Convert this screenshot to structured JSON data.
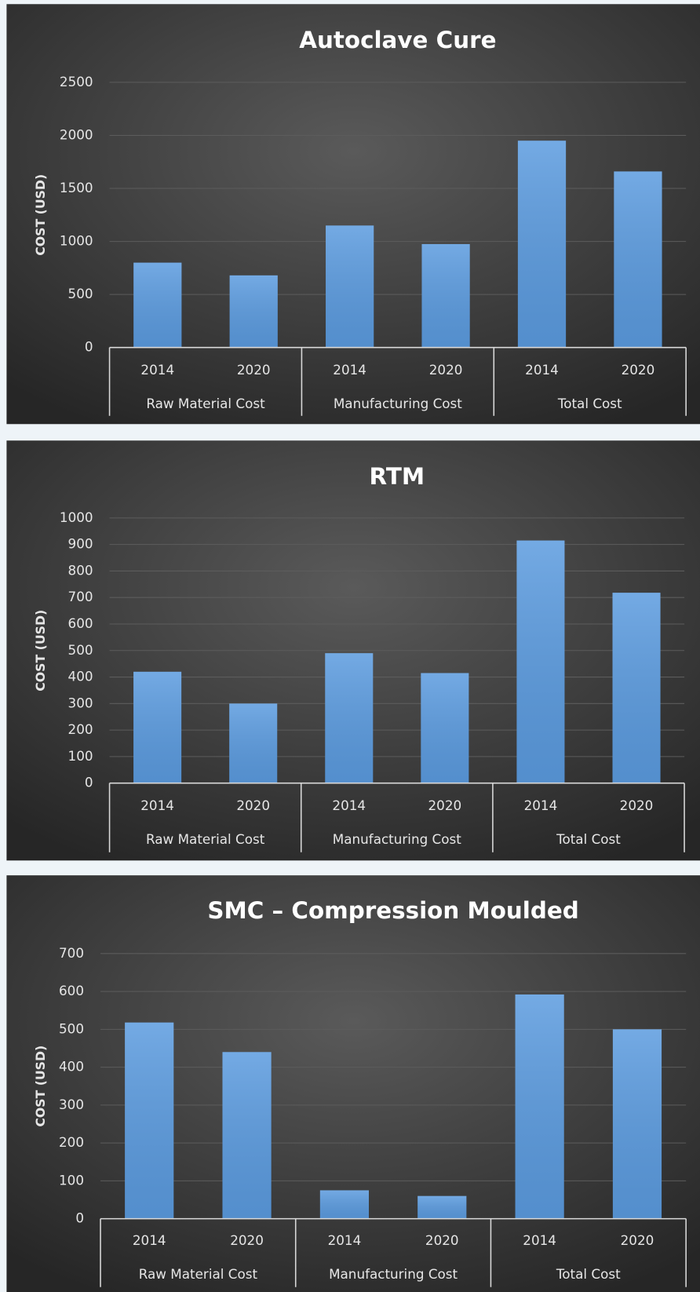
{
  "chart_data": [
    {
      "type": "bar",
      "title": "Autoclave Cure",
      "y_label": "COST (USD)",
      "categories": [
        "2014",
        "2020",
        "2014",
        "2020",
        "2014",
        "2020"
      ],
      "groups": [
        "Raw Material Cost",
        "Manufacturing Cost",
        "Total Cost"
      ],
      "values": [
        800,
        680,
        1150,
        975,
        1950,
        1660
      ],
      "color": "#5b9bdf",
      "ylim": [
        0,
        2500
      ],
      "yticks": [
        0,
        500,
        1000,
        1500,
        2000,
        2500
      ],
      "grid": true
    },
    {
      "type": "bar",
      "title": "RTM",
      "y_label": "COST (USD)",
      "categories": [
        "2014",
        "2020",
        "2014",
        "2020",
        "2014",
        "2020"
      ],
      "groups": [
        "Raw Material Cost",
        "Manufacturing Cost",
        "Total Cost"
      ],
      "values": [
        420,
        300,
        490,
        415,
        915,
        718
      ],
      "color": "#5b9bdf",
      "ylim": [
        0,
        1000
      ],
      "yticks": [
        0,
        100,
        200,
        300,
        400,
        500,
        600,
        700,
        800,
        900,
        1000
      ],
      "grid": true
    },
    {
      "type": "bar",
      "title": "SMC – Compression Moulded",
      "y_label": "COST (USD)",
      "categories": [
        "2014",
        "2020",
        "2014",
        "2020",
        "2014",
        "2020"
      ],
      "groups": [
        "Raw Material Cost",
        "Manufacturing Cost",
        "Total Cost"
      ],
      "values": [
        518,
        440,
        75,
        60,
        592,
        500
      ],
      "color": "#5b9bdf",
      "ylim": [
        0,
        700
      ],
      "yticks": [
        0,
        100,
        200,
        300,
        400,
        500,
        600,
        700
      ],
      "grid": true
    }
  ]
}
